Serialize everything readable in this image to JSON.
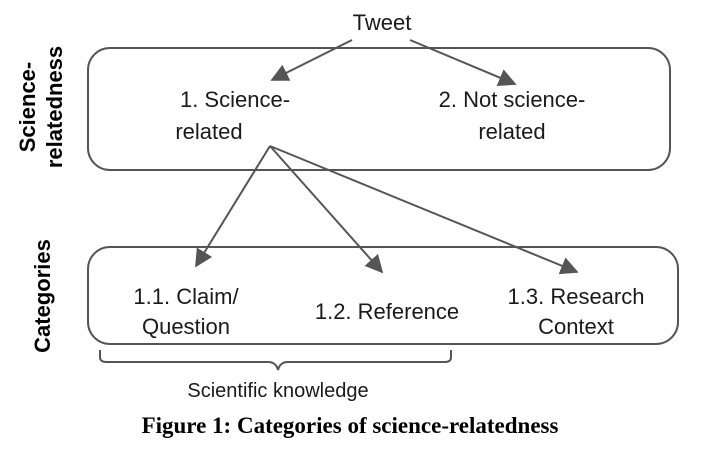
{
  "diagram": {
    "root": "Tweet",
    "side_labels": {
      "top": [
        "Science-",
        "relatedness"
      ],
      "bottom": "Categories"
    },
    "level1": {
      "science_related": [
        "1. Science-",
        "related"
      ],
      "not_science_related": [
        "2. Not science-",
        "related"
      ]
    },
    "level2": {
      "claim_question": [
        "1.1. Claim/",
        "Question"
      ],
      "reference": "1.2. Reference",
      "research_context": [
        "1.3. Research",
        "Context"
      ]
    },
    "brace_label": "Scientific knowledge"
  },
  "caption": "Figure 1: Categories of science-relatedness"
}
